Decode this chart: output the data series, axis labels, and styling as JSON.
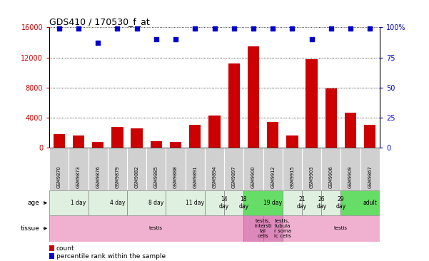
{
  "title": "GDS410 / 170530_f_at",
  "samples": [
    "GSM9870",
    "GSM9873",
    "GSM9876",
    "GSM9879",
    "GSM9882",
    "GSM9885",
    "GSM9888",
    "GSM9891",
    "GSM9894",
    "GSM9897",
    "GSM9900",
    "GSM9912",
    "GSM9915",
    "GSM9903",
    "GSM9906",
    "GSM9909",
    "GSM9867"
  ],
  "counts": [
    1800,
    1550,
    750,
    2750,
    2500,
    850,
    750,
    3000,
    4300,
    11200,
    13500,
    3400,
    1600,
    11800,
    7900,
    4600,
    3000
  ],
  "percentiles": [
    99,
    99,
    87,
    99,
    99,
    90,
    90,
    99,
    99,
    99,
    99,
    99,
    99,
    90,
    99,
    99,
    99
  ],
  "ylim_left": [
    0,
    16000
  ],
  "ylim_right": [
    0,
    100
  ],
  "yticks_left": [
    0,
    4000,
    8000,
    12000,
    16000
  ],
  "yticks_right": [
    0,
    25,
    50,
    75,
    100
  ],
  "bar_color": "#cc0000",
  "dot_color": "#0000cc",
  "sample_box_color": "#d0d0d0",
  "age_groups": [
    {
      "label": "1 day",
      "start": 0,
      "end": 2,
      "color": "#e0f0e0"
    },
    {
      "label": "4 day",
      "start": 2,
      "end": 4,
      "color": "#e0f0e0"
    },
    {
      "label": "8 day",
      "start": 4,
      "end": 6,
      "color": "#e0f0e0"
    },
    {
      "label": "11 day",
      "start": 6,
      "end": 8,
      "color": "#e0f0e0"
    },
    {
      "label": "14\nday",
      "start": 8,
      "end": 9,
      "color": "#e0f0e0"
    },
    {
      "label": "18\nday",
      "start": 9,
      "end": 10,
      "color": "#e0f0e0"
    },
    {
      "label": "19 day",
      "start": 10,
      "end": 12,
      "color": "#66dd66"
    },
    {
      "label": "21\nday",
      "start": 12,
      "end": 13,
      "color": "#e0f0e0"
    },
    {
      "label": "26\nday",
      "start": 13,
      "end": 14,
      "color": "#e0f0e0"
    },
    {
      "label": "29\nday",
      "start": 14,
      "end": 15,
      "color": "#e0f0e0"
    },
    {
      "label": "adult",
      "start": 15,
      "end": 17,
      "color": "#66dd66"
    }
  ],
  "tissue_groups": [
    {
      "label": "testis",
      "start": 0,
      "end": 10,
      "color": "#f0b0d0"
    },
    {
      "label": "testis,\nintersti\ntal\ncells",
      "start": 10,
      "end": 11,
      "color": "#dd88bb"
    },
    {
      "label": "testis,\ntubula\nr soma\nic cells",
      "start": 11,
      "end": 12,
      "color": "#dd88bb"
    },
    {
      "label": "testis",
      "start": 12,
      "end": 17,
      "color": "#f0b0d0"
    }
  ]
}
